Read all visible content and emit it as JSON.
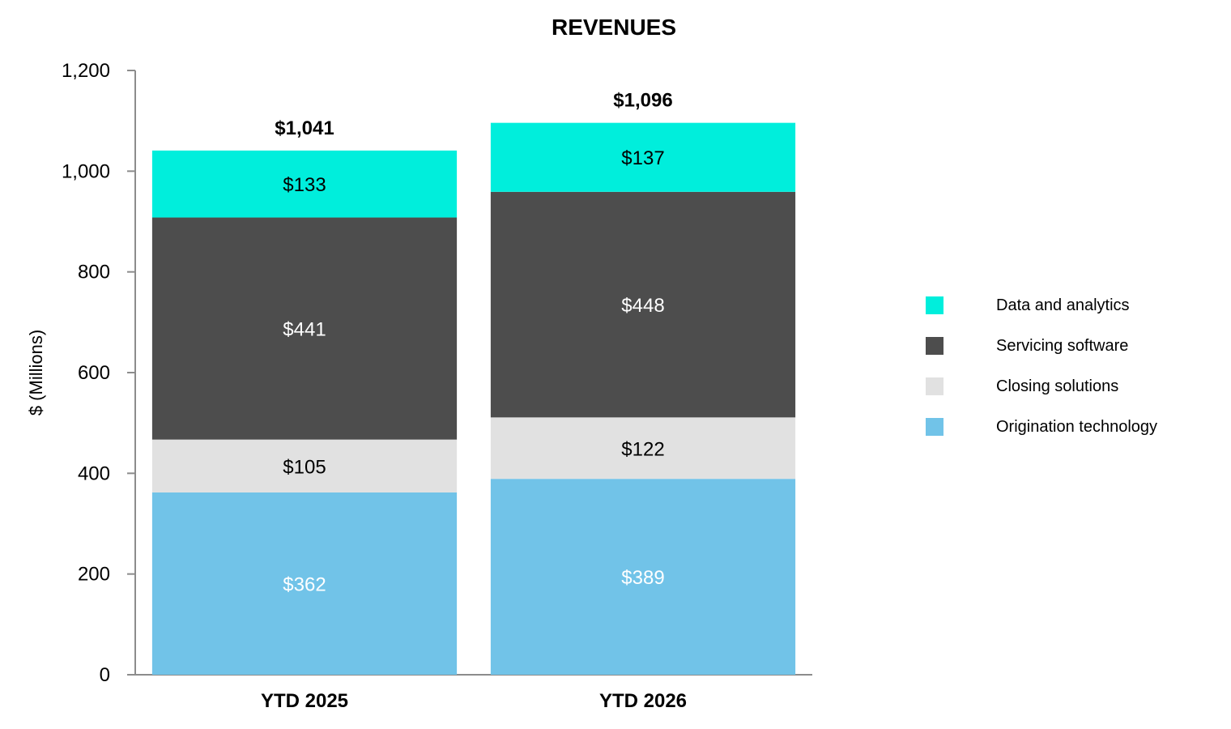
{
  "chart_data": {
    "type": "bar",
    "stacked": true,
    "title": "REVENUES",
    "xlabel": "",
    "ylabel": "$ (Millions)",
    "ylim": [
      0,
      1200
    ],
    "yticks": [
      0,
      200,
      400,
      600,
      800,
      1000,
      1200
    ],
    "ytick_labels": [
      "0",
      "200",
      "400",
      "600",
      "800",
      "1,000",
      "1,200"
    ],
    "categories": [
      "YTD 2025",
      "YTD 2026"
    ],
    "series": [
      {
        "name": "Origination technology",
        "values": [
          362,
          389
        ],
        "labels": [
          "$362",
          "$389"
        ],
        "color": "#71c3e8",
        "label_color": "#ffffff"
      },
      {
        "name": "Closing solutions",
        "values": [
          105,
          122
        ],
        "labels": [
          "$105",
          "$122"
        ],
        "color": "#e1e1e1",
        "label_color": "#000000"
      },
      {
        "name": "Servicing software",
        "values": [
          441,
          448
        ],
        "labels": [
          "$441",
          "$448"
        ],
        "color": "#4d4d4d",
        "label_color": "#ffffff"
      },
      {
        "name": "Data and analytics",
        "values": [
          133,
          137
        ],
        "labels": [
          "$133",
          "$137"
        ],
        "color": "#00eedc",
        "label_color": "#000000"
      }
    ],
    "totals": [
      1041,
      1096
    ],
    "total_labels": [
      "$1,041",
      "$1,096"
    ],
    "grid": false,
    "legend_position": "right",
    "legend_order": [
      "Data and analytics",
      "Servicing software",
      "Closing solutions",
      "Origination technology"
    ]
  }
}
